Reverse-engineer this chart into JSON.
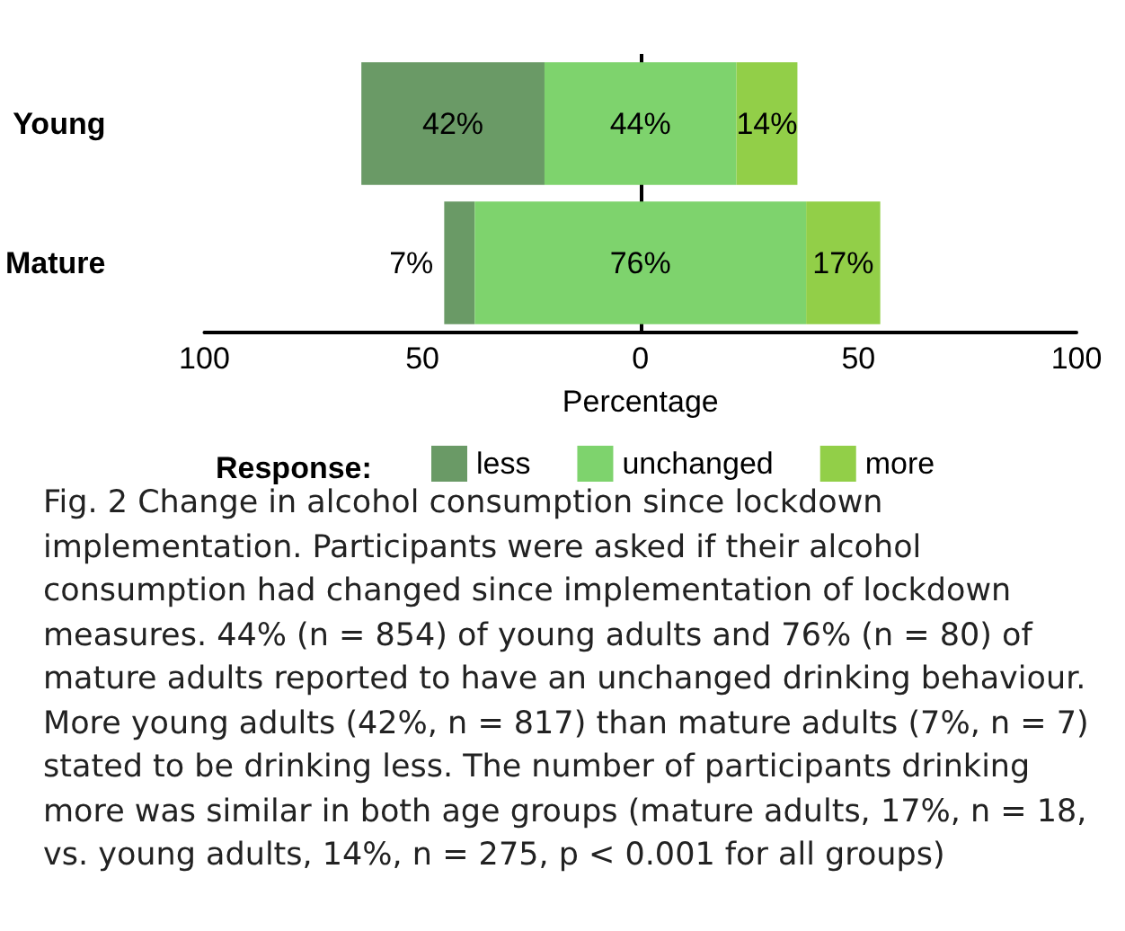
{
  "chart_data": {
    "type": "bar",
    "orientation": "horizontal",
    "categories": [
      "Young",
      "Mature"
    ],
    "xlabel": "Percentage",
    "legend_title": "Response:",
    "legend": "bottom",
    "grid": false,
    "xlim": [
      -100,
      100
    ],
    "xticks": [
      {
        "value": -100,
        "label": "100"
      },
      {
        "value": -50,
        "label": "50"
      },
      0,
      50,
      100
    ],
    "ref_lines": [
      {
        "axis": "x",
        "value": 0,
        "color": "#000000"
      }
    ],
    "series": [
      {
        "name": "less",
        "color": "#6a9a66",
        "values": [
          42,
          7
        ],
        "base": [
          -64,
          -45
        ],
        "value_labels": [
          "42%",
          "7%"
        ]
      },
      {
        "name": "unchanged",
        "color": "#7ed36d",
        "values": [
          44,
          76
        ],
        "base": [
          -22,
          -38
        ],
        "value_labels": [
          "44%",
          "76%"
        ]
      },
      {
        "name": "more",
        "color": "#92cf48",
        "values": [
          14,
          17
        ],
        "base": [
          22,
          38
        ],
        "value_labels": [
          "14%",
          "17%"
        ]
      }
    ],
    "annotations": [
      "Fig. 2 Change in alcohol consumption since lockdown implementation. Participants were asked if their alcohol consumption had changed since implementation of lockdown measures. 44% (n = 854) of young adults and 76% (n = 80) of mature adults reported to have an unchanged drinking behaviour. More young adults (42%, n = 817) than mature adults (7%, n = 7) stated to be drinking less. The number of participants drinking more was similar in both age groups (mature adults, 17%, n = 18, vs. young adults, 14%, n = 275, p < 0.001 for all groups)"
    ]
  }
}
